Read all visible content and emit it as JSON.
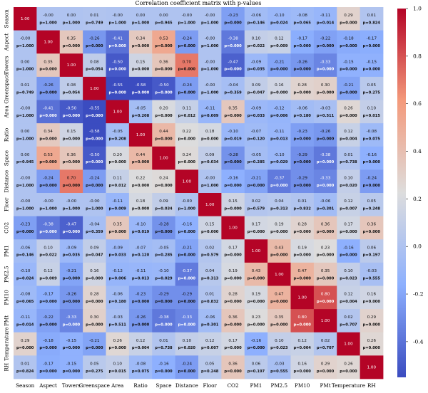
{
  "chart_data": {
    "type": "heatmap",
    "title": "Correlation coefficient matrix with p-values",
    "variables": [
      "Season",
      "Aspect",
      "Towers",
      "Greenspace",
      "Area",
      "Ratio",
      "Space",
      "Distance",
      "Floor",
      "CO2",
      "PM1",
      "PM2.5",
      "PM10",
      "PMt",
      "Temperature",
      "RH"
    ],
    "values": [
      [
        "1.00",
        "-0.00",
        "0.00",
        "0.01",
        "-0.00",
        "0.00",
        "0.00",
        "-0.00",
        "-0.00",
        "-0.23",
        "-0.06",
        "-0.10",
        "-0.08",
        "-0.11",
        "0.29",
        "0.01"
      ],
      [
        "-0.00",
        "1.00",
        "0.35",
        "-0.26",
        "-0.41",
        "0.34",
        "0.53",
        "-0.24",
        "-0.00",
        "-0.38",
        "0.10",
        "0.12",
        "-0.17",
        "-0.22",
        "-0.18",
        "-0.17"
      ],
      [
        "0.00",
        "0.35",
        "1.00",
        "0.08",
        "-0.50",
        "0.15",
        "0.36",
        "0.70",
        "-0.00",
        "-0.47",
        "-0.09",
        "-0.21",
        "-0.26",
        "-0.33",
        "-0.15",
        "-0.15"
      ],
      [
        "0.01",
        "-0.26",
        "0.08",
        "1.00",
        "-0.55",
        "-0.58",
        "-0.50",
        "-0.24",
        "-0.00",
        "-0.04",
        "0.09",
        "0.16",
        "0.28",
        "0.30",
        "-0.21",
        "0.05"
      ],
      [
        "-0.00",
        "-0.41",
        "-0.50",
        "-0.55",
        "1.00",
        "-0.05",
        "0.20",
        "0.11",
        "-0.11",
        "0.35",
        "-0.09",
        "-0.12",
        "-0.06",
        "-0.03",
        "0.26",
        "0.10"
      ],
      [
        "0.00",
        "0.34",
        "0.15",
        "-0.58",
        "-0.05",
        "1.00",
        "0.44",
        "0.22",
        "0.18",
        "-0.10",
        "-0.07",
        "-0.11",
        "-0.23",
        "-0.26",
        "0.12",
        "-0.08"
      ],
      [
        "0.00",
        "0.53",
        "0.36",
        "-0.50",
        "0.20",
        "0.44",
        "1.00",
        "0.24",
        "0.09",
        "-0.28",
        "-0.05",
        "-0.10",
        "-0.29",
        "-0.38",
        "0.01",
        "-0.16"
      ],
      [
        "-0.00",
        "-0.24",
        "0.70",
        "-0.24",
        "0.11",
        "0.22",
        "0.24",
        "1.00",
        "-0.00",
        "-0.16",
        "-0.21",
        "-0.37",
        "-0.29",
        "-0.33",
        "0.10",
        "-0.24"
      ],
      [
        "-0.00",
        "-0.00",
        "-0.00",
        "-0.00",
        "-0.11",
        "0.18",
        "0.09",
        "-0.00",
        "1.00",
        "0.15",
        "0.02",
        "0.04",
        "0.01",
        "-0.06",
        "0.12",
        "0.05"
      ],
      [
        "-0.23",
        "-0.38",
        "-0.47",
        "-0.04",
        "0.35",
        "-0.10",
        "-0.28",
        "-0.16",
        "0.15",
        "1.00",
        "0.17",
        "0.19",
        "0.28",
        "0.36",
        "0.17",
        "0.36"
      ],
      [
        "-0.06",
        "0.10",
        "-0.09",
        "0.09",
        "-0.09",
        "-0.07",
        "-0.05",
        "-0.21",
        "0.02",
        "0.17",
        "1.00",
        "0.43",
        "0.19",
        "0.23",
        "-0.16",
        "0.06"
      ],
      [
        "-0.10",
        "0.12",
        "-0.21",
        "0.16",
        "-0.12",
        "-0.11",
        "-0.10",
        "-0.37",
        "0.04",
        "0.19",
        "0.43",
        "1.00",
        "0.47",
        "0.35",
        "0.10",
        "-0.03"
      ],
      [
        "-0.08",
        "-0.17",
        "-0.26",
        "0.28",
        "-0.06",
        "-0.23",
        "-0.29",
        "-0.29",
        "0.01",
        "0.28",
        "0.19",
        "0.47",
        "1.00",
        "0.80",
        "0.12",
        "0.16"
      ],
      [
        "-0.11",
        "-0.22",
        "-0.33",
        "0.30",
        "-0.03",
        "-0.26",
        "-0.38",
        "-0.33",
        "-0.06",
        "0.36",
        "0.23",
        "0.35",
        "0.80",
        "1.00",
        "0.02",
        "0.29"
      ],
      [
        "0.29",
        "-0.18",
        "-0.15",
        "-0.21",
        "0.26",
        "0.12",
        "0.01",
        "0.10",
        "0.12",
        "0.17",
        "-0.16",
        "0.10",
        "0.12",
        "0.02",
        "1.00",
        "0.26"
      ],
      [
        "0.01",
        "-0.17",
        "-0.15",
        "0.05",
        "0.10",
        "-0.08",
        "-0.16",
        "-0.24",
        "0.05",
        "0.36",
        "0.06",
        "-0.03",
        "0.16",
        "0.29",
        "0.26",
        "1.00"
      ]
    ],
    "pvalues": [
      [
        "",
        "p=1.000",
        "p=1.000",
        "p=0.749",
        "p=1.000",
        "p=1.000",
        "p=0.945",
        "p=1.000",
        "p=1.000",
        "p=0.000",
        "p=0.146",
        "p=0.024",
        "p=0.065",
        "p=0.014",
        "p=0.000",
        "p=0.824"
      ],
      [
        "p=1.000",
        "",
        "p=0.000",
        "p=0.000",
        "p=0.000",
        "p=0.000",
        "p=0.000",
        "p=0.000",
        "p=1.000",
        "p=0.000",
        "p=0.022",
        "p=0.009",
        "p=0.000",
        "p=0.000",
        "p=0.000",
        "p=0.000"
      ],
      [
        "p=1.000",
        "p=0.000",
        "",
        "p=0.054",
        "p=0.000",
        "p=0.000",
        "p=0.000",
        "p=0.000",
        "p=1.000",
        "p=0.000",
        "p=0.035",
        "p=0.000",
        "p=0.000",
        "p=0.000",
        "p=0.000",
        "p=0.000"
      ],
      [
        "p=0.749",
        "p=0.000",
        "p=0.054",
        "",
        "p=0.000",
        "p=0.000",
        "p=0.000",
        "p=0.000",
        "p=1.000",
        "p=0.359",
        "p=0.047",
        "p=0.000",
        "p=0.000",
        "p=0.000",
        "p=0.000",
        "p=0.275"
      ],
      [
        "p=1.000",
        "p=0.000",
        "p=0.000",
        "p=0.000",
        "",
        "p=0.208",
        "p=0.000",
        "p=0.012",
        "p=0.009",
        "p=0.000",
        "p=0.033",
        "p=0.006",
        "p=0.180",
        "p=0.511",
        "p=0.000",
        "p=0.015"
      ],
      [
        "p=1.000",
        "p=0.000",
        "p=0.000",
        "p=0.000",
        "p=0.208",
        "",
        "p=0.000",
        "p=0.000",
        "p=0.000",
        "p=0.019",
        "p=0.120",
        "p=0.013",
        "p=0.000",
        "p=0.000",
        "p=0.004",
        "p=0.075"
      ],
      [
        "p=0.945",
        "p=0.000",
        "p=0.000",
        "p=0.000",
        "p=0.000",
        "p=0.000",
        "",
        "p=0.000",
        "p=0.034",
        "p=0.000",
        "p=0.285",
        "p=0.029",
        "p=0.000",
        "p=0.000",
        "p=0.738",
        "p=0.000"
      ],
      [
        "p=1.000",
        "p=0.000",
        "p=0.000",
        "p=0.000",
        "p=0.012",
        "p=0.000",
        "p=0.000",
        "",
        "p=1.000",
        "p=0.000",
        "p=0.000",
        "p=0.000",
        "p=0.000",
        "p=0.000",
        "p=0.020",
        "p=0.000"
      ],
      [
        "p=1.000",
        "p=1.000",
        "p=1.000",
        "p=1.000",
        "p=0.009",
        "p=0.000",
        "p=0.034",
        "p=1.000",
        "",
        "p=0.000",
        "p=0.579",
        "p=0.313",
        "p=0.832",
        "p=0.301",
        "p=0.007",
        "p=0.248"
      ],
      [
        "p=0.000",
        "p=0.000",
        "p=0.000",
        "p=0.359",
        "p=0.000",
        "p=0.019",
        "p=0.000",
        "p=0.000",
        "p=0.000",
        "",
        "p=0.000",
        "p=0.000",
        "p=0.000",
        "p=0.000",
        "p=0.000",
        "p=0.000"
      ],
      [
        "p=0.146",
        "p=0.022",
        "p=0.035",
        "p=0.047",
        "p=0.033",
        "p=0.120",
        "p=0.285",
        "p=0.000",
        "p=0.579",
        "p=0.000",
        "",
        "p=0.000",
        "p=0.000",
        "p=0.000",
        "p=0.000",
        "p=0.197"
      ],
      [
        "p=0.024",
        "p=0.009",
        "p=0.000",
        "p=0.000",
        "p=0.006",
        "p=0.013",
        "p=0.029",
        "p=0.000",
        "p=0.313",
        "p=0.000",
        "p=0.000",
        "",
        "p=0.000",
        "p=0.000",
        "p=0.023",
        "p=0.555"
      ],
      [
        "p=0.065",
        "p=0.000",
        "p=0.000",
        "p=0.000",
        "p=0.180",
        "p=0.000",
        "p=0.000",
        "p=0.000",
        "p=0.832",
        "p=0.000",
        "p=0.000",
        "p=0.000",
        "",
        "p=0.000",
        "p=0.004",
        "p=0.000"
      ],
      [
        "p=0.014",
        "p=0.000",
        "p=0.000",
        "p=0.000",
        "p=0.511",
        "p=0.000",
        "p=0.000",
        "p=0.000",
        "p=0.301",
        "p=0.000",
        "p=0.000",
        "p=0.000",
        "p=0.000",
        "",
        "p=0.707",
        "p=0.000"
      ],
      [
        "p=0.000",
        "p=0.000",
        "p=0.000",
        "p=0.000",
        "p=0.000",
        "p=0.004",
        "p=0.738",
        "p=0.020",
        "p=0.007",
        "p=0.000",
        "p=0.000",
        "p=0.023",
        "p=0.004",
        "p=0.707",
        "",
        "p=0.000"
      ],
      [
        "p=0.824",
        "p=0.000",
        "p=0.000",
        "p=0.275",
        "p=0.015",
        "p=0.075",
        "p=0.000",
        "p=0.000",
        "p=0.248",
        "p=0.000",
        "p=0.197",
        "p=0.555",
        "p=0.000",
        "p=0.000",
        "p=0.000",
        ""
      ]
    ],
    "colorbar": {
      "min": -0.55,
      "max": 1.0,
      "ticks": [
        "-0.4",
        "-0.2",
        "0.0",
        "0.2",
        "0.4",
        "0.6",
        "0.8",
        "1.0"
      ],
      "colormap": "coolwarm"
    },
    "colors": {
      "negative": "#3b4cc0",
      "neutral": "#dddddd",
      "positive": "#b40426"
    }
  }
}
